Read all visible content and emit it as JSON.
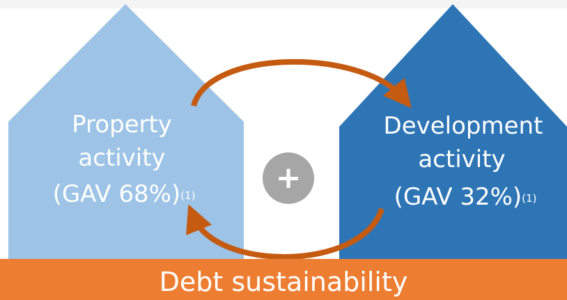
{
  "left_house": {
    "lines": [
      "Property",
      "activity",
      "(GAV 68%)"
    ],
    "footnote": "(1)"
  },
  "right_house": {
    "lines": [
      "Development",
      "activity",
      "(GAV 32%)"
    ],
    "footnote": "(1)"
  },
  "center": "+",
  "base": "Debt sustainability"
}
